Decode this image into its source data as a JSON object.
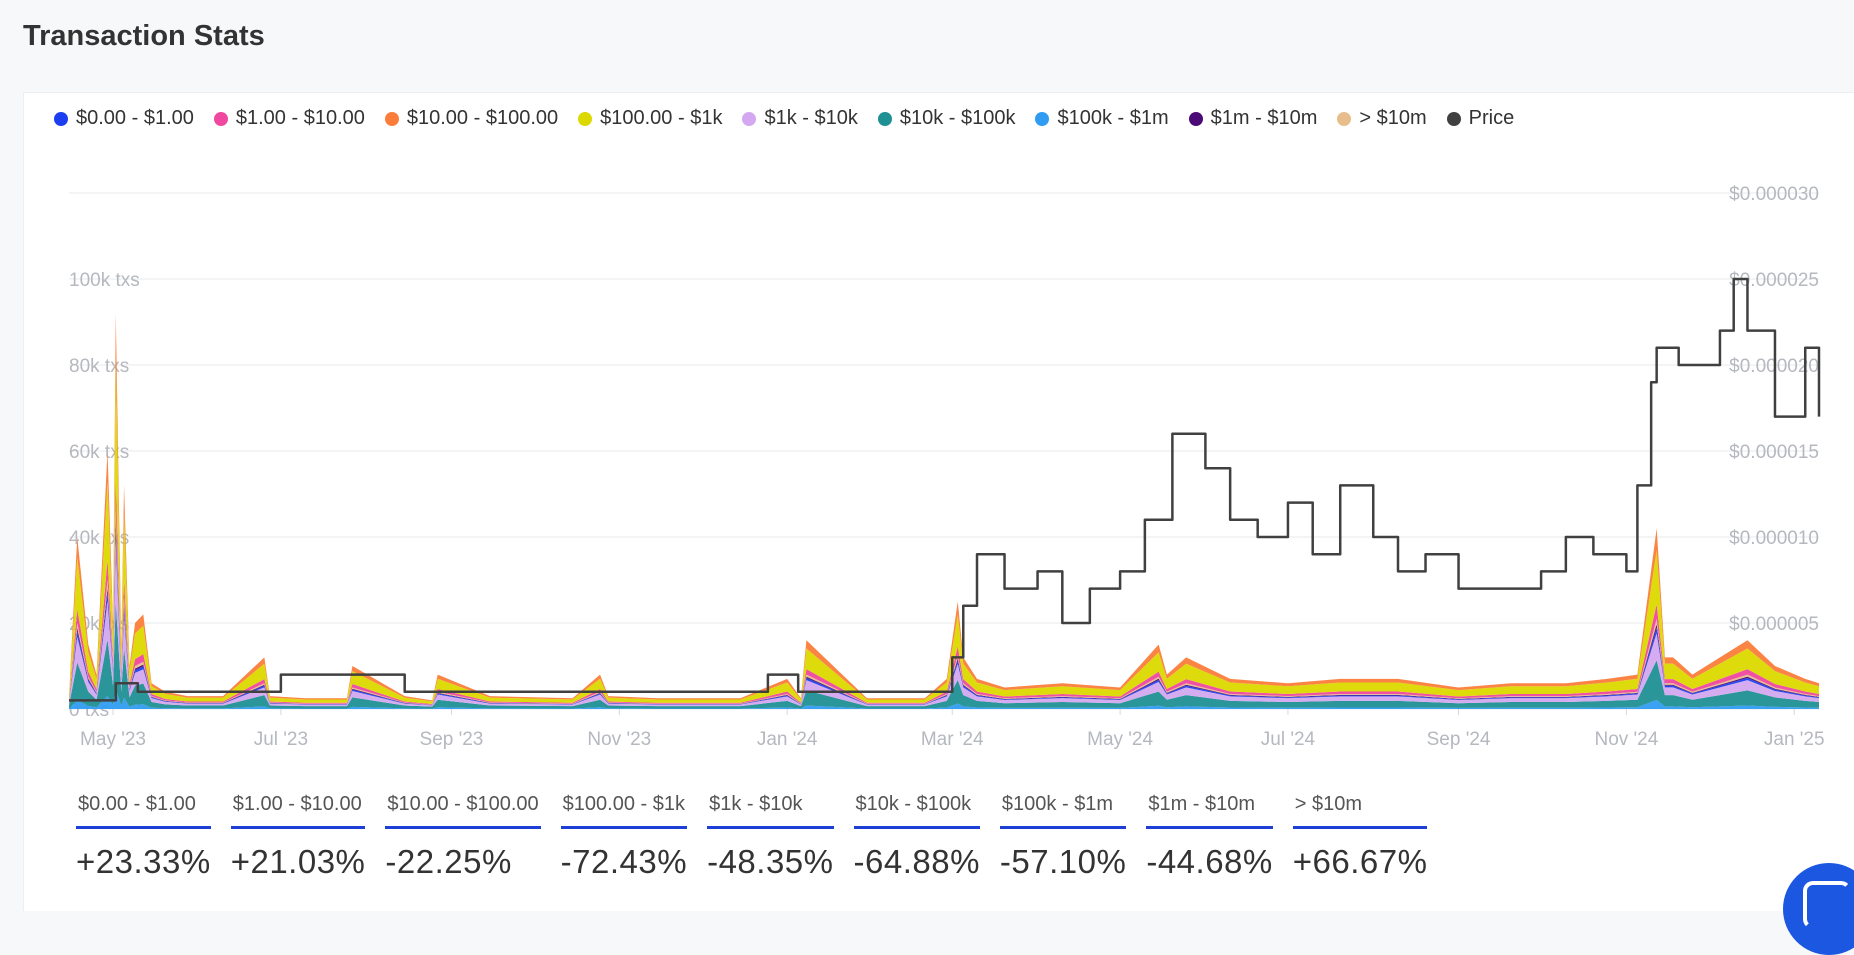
{
  "page": {
    "title": "Transaction Stats"
  },
  "legend": [
    {
      "label": "$0.00 - $1.00",
      "color": "#1b3ff0"
    },
    {
      "label": "$1.00 - $10.00",
      "color": "#f0489e"
    },
    {
      "label": "$10.00 - $100.00",
      "color": "#fb7d3a"
    },
    {
      "label": "$100.00 - $1k",
      "color": "#dcd900"
    },
    {
      "label": "$1k - $10k",
      "color": "#d4a8f0"
    },
    {
      "label": "$10k - $100k",
      "color": "#1f9094"
    },
    {
      "label": "$100k - $1m",
      "color": "#2f9cf2"
    },
    {
      "label": "$1m - $10m",
      "color": "#4b0a76"
    },
    {
      "label": "> $10m",
      "color": "#e8bd8c"
    },
    {
      "label": "Price",
      "color": "#404040"
    }
  ],
  "stats": [
    {
      "label": "$0.00 - $1.00",
      "value": "+23.33%"
    },
    {
      "label": "$1.00 - $10.00",
      "value": "+21.03%"
    },
    {
      "label": "$10.00 - $100.00",
      "value": "-22.25%"
    },
    {
      "label": "$100.00 - $1k",
      "value": "-72.43%"
    },
    {
      "label": "$1k - $10k",
      "value": "-48.35%"
    },
    {
      "label": "$10k - $100k",
      "value": "-64.88%"
    },
    {
      "label": "$100k - $1m",
      "value": "-57.10%"
    },
    {
      "label": "$1m - $10m",
      "value": "-44.68%"
    },
    {
      "label": "> $10m",
      "value": "+66.67%"
    }
  ],
  "chart_data": {
    "type": "area",
    "stacked": true,
    "x_ticks": [
      "May '23",
      "Jul '23",
      "Sep '23",
      "Nov '23",
      "Jan '24",
      "Mar '24",
      "May '24",
      "Jul '24",
      "Sep '24",
      "Nov '24",
      "Jan '25"
    ],
    "y_left_ticks": [
      "0 txs",
      "20k txs",
      "40k txs",
      "60k txs",
      "80k txs",
      "100k txs"
    ],
    "y_left_range": [
      0,
      120000
    ],
    "y_right_ticks": [
      "$0.000005",
      "$0.000010",
      "$0.000015",
      "$0.000020",
      "$0.000025",
      "$0.000030"
    ],
    "y_right_range": [
      0,
      3e-05
    ],
    "grid": true,
    "legend_position": "top-left",
    "total_txs_series": {
      "x": [
        "2023-04-15",
        "2023-04-18",
        "2023-04-22",
        "2023-04-25",
        "2023-04-29",
        "2023-05-01",
        "2023-05-02",
        "2023-05-04",
        "2023-05-05",
        "2023-05-07",
        "2023-05-09",
        "2023-05-12",
        "2023-05-15",
        "2023-05-20",
        "2023-05-28",
        "2023-06-10",
        "2023-06-25",
        "2023-06-27",
        "2023-07-10",
        "2023-07-25",
        "2023-07-27",
        "2023-08-15",
        "2023-08-25",
        "2023-08-27",
        "2023-09-15",
        "2023-10-15",
        "2023-10-25",
        "2023-10-28",
        "2023-11-15",
        "2023-12-15",
        "2024-01-01",
        "2024-01-06",
        "2024-01-08",
        "2024-01-30",
        "2024-02-20",
        "2024-02-28",
        "2024-03-03",
        "2024-03-05",
        "2024-03-10",
        "2024-03-20",
        "2024-04-10",
        "2024-05-01",
        "2024-05-15",
        "2024-05-18",
        "2024-05-25",
        "2024-06-10",
        "2024-07-01",
        "2024-07-20",
        "2024-08-10",
        "2024-09-01",
        "2024-09-20",
        "2024-10-10",
        "2024-10-25",
        "2024-11-05",
        "2024-11-12",
        "2024-11-15",
        "2024-11-18",
        "2024-11-25",
        "2024-12-05",
        "2024-12-15",
        "2024-12-25",
        "2025-01-05",
        "2025-01-10"
      ],
      "values": [
        3000,
        40000,
        15000,
        8000,
        60000,
        20000,
        92000,
        15000,
        52000,
        10000,
        20000,
        22000,
        6000,
        4000,
        3000,
        3000,
        12000,
        3000,
        2500,
        2500,
        10000,
        3000,
        2000,
        8000,
        3000,
        2500,
        8000,
        3000,
        2500,
        2500,
        7000,
        2500,
        16000,
        2500,
        2500,
        7000,
        25000,
        12000,
        7000,
        5000,
        6000,
        5000,
        15000,
        8000,
        12000,
        7000,
        6000,
        7000,
        7000,
        5000,
        6000,
        6000,
        7000,
        8000,
        42000,
        12000,
        12000,
        8000,
        12000,
        16000,
        10000,
        7000,
        6000
      ]
    },
    "price_series": {
      "x": [
        "2023-04-15",
        "2023-04-30",
        "2023-05-02",
        "2023-05-10",
        "2023-06-01",
        "2023-06-25",
        "2023-07-01",
        "2023-08-10",
        "2023-08-15",
        "2023-12-20",
        "2023-12-25",
        "2024-01-05",
        "2024-02-28",
        "2024-03-01",
        "2024-03-05",
        "2024-03-10",
        "2024-03-20",
        "2024-04-01",
        "2024-04-10",
        "2024-04-20",
        "2024-05-01",
        "2024-05-10",
        "2024-05-20",
        "2024-06-01",
        "2024-06-10",
        "2024-06-20",
        "2024-07-01",
        "2024-07-10",
        "2024-07-20",
        "2024-08-01",
        "2024-08-10",
        "2024-08-20",
        "2024-09-01",
        "2024-09-15",
        "2024-10-01",
        "2024-10-10",
        "2024-10-20",
        "2024-11-01",
        "2024-11-05",
        "2024-11-10",
        "2024-11-12",
        "2024-11-20",
        "2024-12-01",
        "2024-12-05",
        "2024-12-10",
        "2024-12-15",
        "2024-12-25",
        "2025-01-05",
        "2025-01-10"
      ],
      "values": [
        5e-07,
        5e-07,
        1.5e-06,
        1e-06,
        1e-06,
        1e-06,
        2e-06,
        2e-06,
        1e-06,
        1e-06,
        2e-06,
        1e-06,
        1e-06,
        3e-06,
        6e-06,
        9e-06,
        7e-06,
        8e-06,
        5e-06,
        7e-06,
        8e-06,
        1.1e-05,
        1.6e-05,
        1.4e-05,
        1.1e-05,
        1e-05,
        1.2e-05,
        9e-06,
        1.3e-05,
        1e-05,
        8e-06,
        9e-06,
        7e-06,
        7e-06,
        8e-06,
        1e-05,
        9e-06,
        8e-06,
        1.3e-05,
        1.9e-05,
        2.1e-05,
        2e-05,
        2e-05,
        2.2e-05,
        2.5e-05,
        2.2e-05,
        1.7e-05,
        2.1e-05,
        1.7e-05
      ]
    }
  }
}
